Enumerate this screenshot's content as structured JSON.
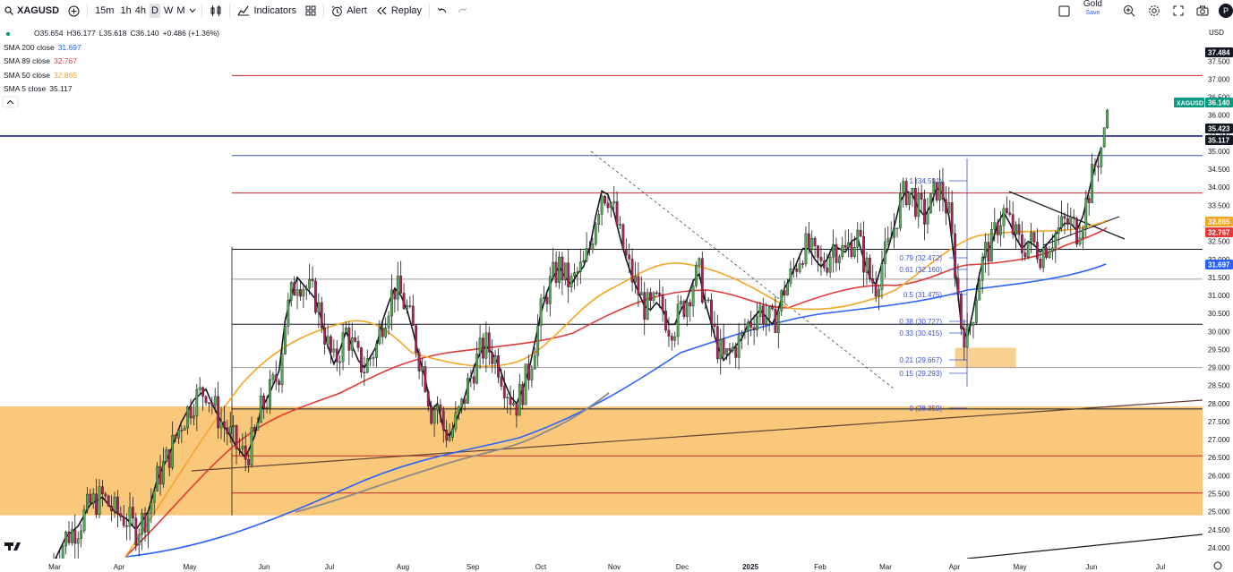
{
  "toolbar": {
    "symbol": "XAGUSD",
    "intervals": [
      "15m",
      "1h",
      "4h",
      "D",
      "W",
      "M"
    ],
    "active_interval": "D",
    "indicators_label": "Indicators",
    "alert_label": "Alert",
    "replay_label": "Replay",
    "layout_name": "Gold",
    "layout_save": "Save",
    "avatar_initial": "P"
  },
  "ohlc": {
    "o": "O35.654",
    "h": "H36.177",
    "l": "L35.618",
    "c": "C36.140",
    "chg": "+0.486 (+1.36%)"
  },
  "legend": [
    {
      "label": "SMA 200 close",
      "value": "31.697",
      "color": "#2962ff"
    },
    {
      "label": "SMA 89 close",
      "value": "32.767",
      "color": "#e53935"
    },
    {
      "label": "SMA 50 close",
      "value": "32.865",
      "color": "#f5a623"
    },
    {
      "label": "SMA 5 close",
      "value": "35.117",
      "color": "#131722"
    }
  ],
  "currency": "USD",
  "chart_data": {
    "type": "candlestick",
    "symbol": "XAGUSD",
    "interval": "D",
    "y_range": [
      23.7,
      38.6
    ],
    "y_ticks": [
      "24.000",
      "24.500",
      "25.000",
      "25.500",
      "26.000",
      "26.500",
      "27.000",
      "27.500",
      "28.000",
      "28.500",
      "29.000",
      "29.500",
      "30.000",
      "30.500",
      "31.000",
      "31.500",
      "32.000",
      "32.500",
      "33.000",
      "33.500",
      "34.000",
      "34.500",
      "35.000",
      "35.500",
      "36.000",
      "36.500",
      "37.000",
      "37.500"
    ],
    "x_labels": [
      "Mar",
      "Apr",
      "May",
      "Jun",
      "Jul",
      "Aug",
      "Sep",
      "Oct",
      "Nov",
      "Dec",
      "2025",
      "Feb",
      "Mar",
      "Apr",
      "May",
      "Jun",
      "Jul"
    ],
    "price_tags": [
      {
        "value": 37.484,
        "label": "37.484",
        "color": "#131722"
      },
      {
        "value": 36.14,
        "label": "36.140",
        "color": "#089981",
        "name": "XAGUSD"
      },
      {
        "value": 35.423,
        "label": "35.423",
        "color": "#131722"
      },
      {
        "value": 35.117,
        "label": "35.117",
        "color": "#131722"
      },
      {
        "value": 32.865,
        "label": "32.865",
        "color": "#f5a623"
      },
      {
        "value": 32.767,
        "label": "32.767",
        "color": "#e53935"
      },
      {
        "value": 31.697,
        "label": "31.697",
        "color": "#2962ff"
      }
    ],
    "fib_levels": [
      {
        "ratio": "1",
        "value": "34.591"
      },
      {
        "ratio": "0.79",
        "value": "32.472"
      },
      {
        "ratio": "0.61",
        "value": "32.160"
      },
      {
        "ratio": "0.5",
        "value": "31.475"
      },
      {
        "ratio": "0.38",
        "value": "30.727"
      },
      {
        "ratio": "0.33",
        "value": "30.415"
      },
      {
        "ratio": "0.21",
        "value": "29.667"
      },
      {
        "ratio": "0.15",
        "value": "29.293"
      },
      {
        "ratio": "0",
        "value": "28.359"
      }
    ],
    "horizontal_levels": [
      {
        "value": 37.1,
        "color": "#c62828"
      },
      {
        "value": 35.423,
        "color": "#1a237e"
      },
      {
        "value": 34.88,
        "color": "#3f51b5"
      },
      {
        "value": 33.84,
        "color": "#c62828"
      },
      {
        "value": 32.28,
        "color": "#131722"
      },
      {
        "value": 31.45,
        "color": "#9e9e9e"
      },
      {
        "value": 30.2,
        "color": "#131722"
      },
      {
        "value": 29.0,
        "color": "#9e9e9e"
      },
      {
        "value": 27.85,
        "color": "#131722"
      },
      {
        "value": 26.55,
        "color": "#c62828"
      },
      {
        "value": 25.52,
        "color": "#c62828"
      }
    ],
    "zones": [
      {
        "from": 24.9,
        "to": 27.92,
        "color": "#f6b142"
      },
      {
        "from": 29.0,
        "to": 29.55,
        "color": "#f6b142"
      }
    ],
    "close_path": [
      [
        0,
        23.6
      ],
      [
        4,
        24.3
      ],
      [
        8,
        24.6
      ],
      [
        12,
        25.2
      ],
      [
        16,
        25.4
      ],
      [
        20,
        25.0
      ],
      [
        24,
        24.8
      ],
      [
        27,
        24.5
      ],
      [
        31,
        25.0
      ],
      [
        34,
        25.9
      ],
      [
        38,
        26.6
      ],
      [
        42,
        27.5
      ],
      [
        46,
        28.1
      ],
      [
        50,
        28.4
      ],
      [
        52,
        28.0
      ],
      [
        55,
        27.5
      ],
      [
        58,
        27.1
      ],
      [
        60,
        26.8
      ],
      [
        63,
        26.5
      ],
      [
        66,
        27.1
      ],
      [
        68,
        27.8
      ],
      [
        71,
        28.3
      ],
      [
        74,
        28.9
      ],
      [
        76,
        30.3
      ],
      [
        78,
        31.0
      ],
      [
        80,
        31.5
      ],
      [
        82,
        31.3
      ],
      [
        84,
        31.1
      ],
      [
        86,
        30.9
      ],
      [
        88,
        30.3
      ],
      [
        90,
        29.6
      ],
      [
        92,
        29.1
      ],
      [
        94,
        29.5
      ],
      [
        96,
        30.0
      ],
      [
        98,
        29.6
      ],
      [
        100,
        29.2
      ],
      [
        102,
        29.0
      ],
      [
        104,
        29.3
      ],
      [
        106,
        29.6
      ],
      [
        108,
        30.3
      ],
      [
        110,
        30.8
      ],
      [
        112,
        31.2
      ],
      [
        114,
        31.0
      ],
      [
        116,
        30.6
      ],
      [
        118,
        30.0
      ],
      [
        120,
        29.3
      ],
      [
        122,
        28.7
      ],
      [
        124,
        27.8
      ],
      [
        126,
        28.0
      ],
      [
        128,
        27.3
      ],
      [
        130,
        27.1
      ],
      [
        132,
        27.5
      ],
      [
        134,
        27.9
      ],
      [
        136,
        28.5
      ],
      [
        138,
        29.0
      ],
      [
        140,
        29.4
      ],
      [
        142,
        29.6
      ],
      [
        144,
        29.4
      ],
      [
        146,
        29.1
      ],
      [
        148,
        28.6
      ],
      [
        150,
        28.2
      ],
      [
        152,
        28.0
      ],
      [
        154,
        28.4
      ],
      [
        156,
        28.9
      ],
      [
        158,
        29.7
      ],
      [
        160,
        30.5
      ],
      [
        162,
        31.1
      ],
      [
        164,
        31.5
      ],
      [
        166,
        31.8
      ],
      [
        168,
        31.5
      ],
      [
        170,
        31.3
      ],
      [
        172,
        31.6
      ],
      [
        174,
        31.8
      ],
      [
        176,
        32.3
      ],
      [
        178,
        33.2
      ],
      [
        180,
        33.9
      ],
      [
        182,
        33.8
      ],
      [
        184,
        33.3
      ],
      [
        186,
        32.6
      ],
      [
        188,
        32.0
      ],
      [
        190,
        31.5
      ],
      [
        192,
        31.1
      ],
      [
        194,
        30.7
      ],
      [
        196,
        30.6
      ],
      [
        198,
        30.8
      ],
      [
        200,
        30.6
      ],
      [
        202,
        30.2
      ],
      [
        204,
        30.2
      ],
      [
        206,
        30.6
      ],
      [
        208,
        30.9
      ],
      [
        210,
        31.4
      ],
      [
        212,
        31.6
      ],
      [
        214,
        30.8
      ],
      [
        216,
        30.2
      ],
      [
        218,
        29.6
      ],
      [
        220,
        29.2
      ],
      [
        222,
        29.4
      ],
      [
        224,
        29.6
      ],
      [
        226,
        29.8
      ],
      [
        228,
        30.2
      ],
      [
        230,
        30.4
      ],
      [
        232,
        30.6
      ],
      [
        234,
        30.4
      ],
      [
        236,
        30.2
      ],
      [
        238,
        30.6
      ],
      [
        240,
        31.2
      ],
      [
        242,
        31.5
      ],
      [
        244,
        31.9
      ],
      [
        246,
        32.3
      ],
      [
        248,
        32.3
      ],
      [
        250,
        32.0
      ],
      [
        252,
        31.8
      ],
      [
        254,
        32.0
      ],
      [
        256,
        32.4
      ],
      [
        258,
        32.3
      ],
      [
        260,
        32.2
      ],
      [
        262,
        32.5
      ],
      [
        264,
        32.6
      ],
      [
        266,
        32.0
      ],
      [
        268,
        31.5
      ],
      [
        270,
        31.3
      ],
      [
        272,
        31.9
      ],
      [
        274,
        32.3
      ],
      [
        276,
        32.9
      ],
      [
        278,
        33.6
      ],
      [
        280,
        33.9
      ],
      [
        282,
        33.8
      ],
      [
        284,
        33.4
      ],
      [
        286,
        33.2
      ],
      [
        288,
        33.5
      ],
      [
        290,
        34.0
      ],
      [
        292,
        33.8
      ],
      [
        294,
        33.2
      ],
      [
        296,
        31.8
      ],
      [
        298,
        30.2
      ],
      [
        300,
        29.8
      ],
      [
        302,
        30.6
      ],
      [
        304,
        31.6
      ],
      [
        306,
        32.2
      ],
      [
        308,
        32.4
      ],
      [
        310,
        33.0
      ],
      [
        312,
        33.3
      ],
      [
        314,
        33.0
      ],
      [
        316,
        32.6
      ],
      [
        318,
        32.3
      ],
      [
        320,
        32.5
      ],
      [
        322,
        32.4
      ],
      [
        324,
        32.2
      ],
      [
        326,
        32.4
      ],
      [
        328,
        32.6
      ],
      [
        330,
        32.8
      ],
      [
        332,
        33.0
      ],
      [
        334,
        33.0
      ],
      [
        336,
        32.8
      ],
      [
        338,
        33.2
      ],
      [
        340,
        33.9
      ],
      [
        342,
        34.6
      ],
      [
        344,
        35.1
      ]
    ],
    "x_domain": [
      0,
      347
    ]
  }
}
